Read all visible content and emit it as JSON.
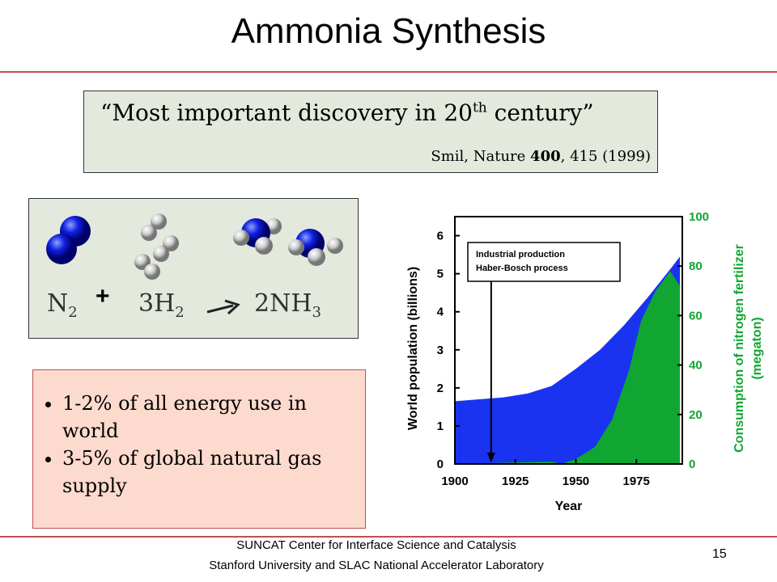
{
  "title": "Ammonia Synthesis",
  "quote": {
    "text": "“Most important discovery in 20",
    "sup": "th",
    "tail": " century”"
  },
  "citation": {
    "before": "Smil, Nature ",
    "bold": "400",
    "after": ", 415 (1999)"
  },
  "equation": {
    "n": "N",
    "n_sub": "2",
    "plus": "+",
    "h": "3H",
    "h_sub": "2",
    "nh": "2NH",
    "nh_sub": "3"
  },
  "bullets": [
    "1-2% of all energy use in world",
    "3-5% of global natural gas supply"
  ],
  "footer": [
    "SUNCAT Center for Interface Science and Catalysis",
    "Stanford University and SLAC National Accelerator Laboratory"
  ],
  "page_number": "15",
  "chart_data": {
    "type": "area",
    "xlabel": "Year",
    "ylabel": "World population (billions)",
    "y2label": [
      "Consumption of nitrogen fertilizer",
      "(megaton)"
    ],
    "annotation": [
      "Industrial production",
      "Haber-Bosch process"
    ],
    "annotation_x": 1915,
    "xlim": [
      1900,
      1994
    ],
    "xticks": [
      1900,
      1925,
      1950,
      1975
    ],
    "ylim": [
      0,
      6.5
    ],
    "yticks": [
      0,
      1,
      2,
      3,
      4,
      5,
      6
    ],
    "y2lim": [
      0,
      100
    ],
    "y2ticks": [
      0,
      20,
      40,
      60,
      80,
      100
    ],
    "series": [
      {
        "name": "World population",
        "color": "#1a33f0",
        "x": [
          1900,
          1910,
          1920,
          1930,
          1940,
          1950,
          1960,
          1970,
          1980,
          1990,
          1993
        ],
        "values": [
          1.65,
          1.7,
          1.75,
          1.85,
          2.05,
          2.5,
          3.0,
          3.65,
          4.4,
          5.2,
          5.45
        ]
      },
      {
        "name": "Nitrogen fertilizer",
        "color": "#11a532",
        "axis": "y2",
        "x": [
          1900,
          1920,
          1940,
          1944,
          1950,
          1958,
          1965,
          1972,
          1977,
          1983,
          1989,
          1993
        ],
        "values": [
          0,
          0.5,
          1,
          0,
          2,
          7,
          18,
          38,
          58,
          70,
          78,
          72
        ]
      }
    ]
  }
}
